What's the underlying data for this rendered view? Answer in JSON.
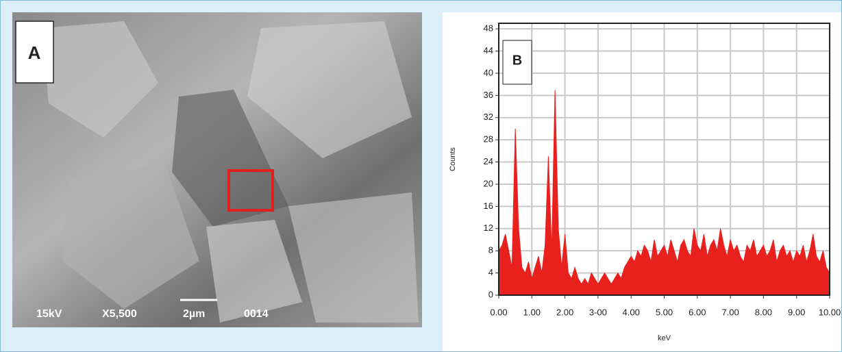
{
  "panel_a": {
    "label": "A",
    "voltage": "15kV",
    "magnification": "X5,500",
    "scale": "2µm",
    "frame": "0014"
  },
  "panel_b": {
    "label": "B"
  },
  "chart_data": {
    "type": "area",
    "x_label": "keV",
    "y_label": "Counts",
    "color": "#e8201e",
    "grid": true,
    "x": [
      0,
      0.1,
      0.2,
      0.3,
      0.4,
      0.5,
      0.6,
      0.7,
      0.8,
      0.9,
      1,
      1.1,
      1.2,
      1.3,
      1.4,
      1.5,
      1.6,
      1.7,
      1.8,
      1.9,
      2,
      2.1,
      2.2,
      2.3,
      2.4,
      2.5,
      2.6,
      2.7,
      2.8,
      2.9,
      3,
      3.1,
      3.2,
      3.3,
      3.4,
      3.5,
      3.6,
      3.7,
      3.8,
      3.9,
      4,
      4.1,
      4.2,
      4.3,
      4.4,
      4.5,
      4.6,
      4.7,
      4.8,
      4.9,
      5,
      5.1,
      5.2,
      5.3,
      5.4,
      5.5,
      5.6,
      5.7,
      5.8,
      5.9,
      6,
      6.1,
      6.2,
      6.3,
      6.4,
      6.5,
      6.6,
      6.7,
      6.8,
      6.9,
      7,
      7.1,
      7.2,
      7.3,
      7.4,
      7.5,
      7.6,
      7.7,
      7.8,
      7.9,
      8,
      8.1,
      8.2,
      8.3,
      8.4,
      8.5,
      8.6,
      8.7,
      8.8,
      8.9,
      9,
      9.1,
      9.2,
      9.3,
      9.4,
      9.5,
      9.6,
      9.7,
      9.8,
      9.9,
      10
    ],
    "values": [
      8,
      9,
      11,
      8,
      5,
      30,
      12,
      5,
      4,
      6,
      3,
      5,
      7,
      4,
      9,
      25,
      8,
      37,
      12,
      5,
      11,
      4,
      3,
      5,
      3,
      2,
      3,
      2,
      4,
      3,
      2,
      3,
      4,
      3,
      2,
      3,
      4,
      3,
      5,
      6,
      7,
      6,
      8,
      7,
      9,
      8,
      6,
      10,
      7,
      8,
      9,
      7,
      10,
      8,
      6,
      9,
      10,
      8,
      7,
      12,
      9,
      8,
      11,
      7,
      9,
      10,
      8,
      12,
      9,
      7,
      10,
      8,
      9,
      7,
      6,
      9,
      8,
      10,
      7,
      8,
      9,
      7,
      8,
      10,
      6,
      8,
      9,
      7,
      8,
      6,
      8,
      7,
      9,
      6,
      8,
      11,
      7,
      6,
      8,
      5,
      4
    ],
    "xlim": [
      0,
      10
    ],
    "ylim": [
      0,
      49
    ],
    "xticks": [
      {
        "value": 0,
        "label": "0.00"
      },
      {
        "value": 1,
        "label": "1.00"
      },
      {
        "value": 2,
        "label": "2.00"
      },
      {
        "value": 3,
        "label": "3-00"
      },
      {
        "value": 4,
        "label": "4.00"
      },
      {
        "value": 5,
        "label": "5.00"
      },
      {
        "value": 6,
        "label": "6.00"
      },
      {
        "value": 7,
        "label": "7.00"
      },
      {
        "value": 8,
        "label": "8.00"
      },
      {
        "value": 9,
        "label": "9.00"
      },
      {
        "value": 10,
        "label": "10.00"
      }
    ],
    "yticks": [
      0,
      4,
      8,
      12,
      16,
      20,
      24,
      28,
      32,
      36,
      40,
      44,
      48
    ]
  }
}
